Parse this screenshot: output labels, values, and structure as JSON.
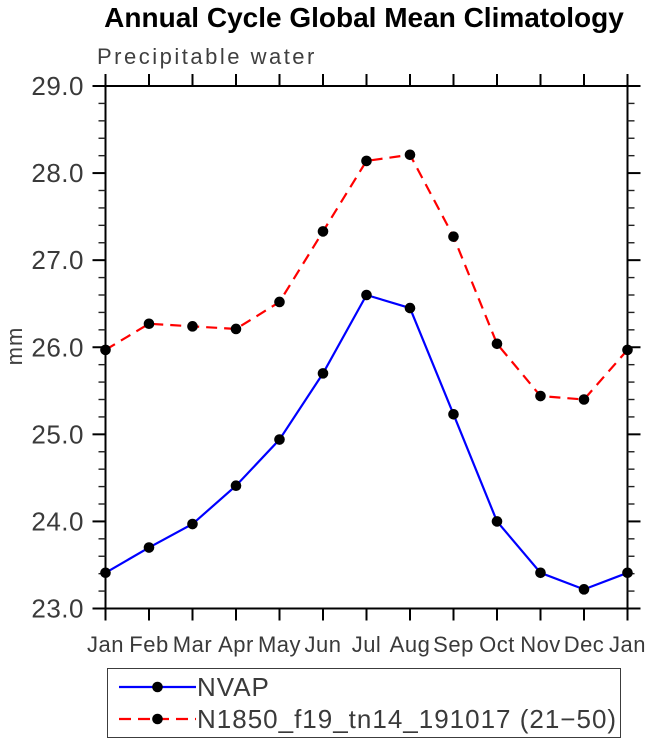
{
  "chart_data": {
    "type": "line",
    "title": "Annual Cycle Global Mean Climatology",
    "subtitle": "Precipitable water",
    "ylabel": "mm",
    "xlabel": "",
    "categories": [
      "Jan",
      "Feb",
      "Mar",
      "Apr",
      "May",
      "Jun",
      "Jul",
      "Aug",
      "Sep",
      "Oct",
      "Nov",
      "Dec",
      "Jan"
    ],
    "series": [
      {
        "name": "NVAP",
        "color": "#0000ff",
        "line_style": "solid",
        "marker": "filled-circle",
        "marker_color": "#000000",
        "values": [
          23.41,
          23.7,
          23.97,
          24.41,
          24.94,
          25.7,
          26.6,
          26.45,
          25.23,
          24.0,
          23.41,
          23.22,
          23.41
        ]
      },
      {
        "name": "N1850_f19_tn14_191017 (21−50)",
        "color": "#ff0000",
        "line_style": "dashed",
        "marker": "filled-circle",
        "marker_color": "#000000",
        "values": [
          25.97,
          26.27,
          26.24,
          26.21,
          26.52,
          27.33,
          28.14,
          28.21,
          27.27,
          26.04,
          25.44,
          25.4,
          25.97
        ]
      }
    ],
    "ylim": [
      23.0,
      29.0
    ],
    "y_tick_labels": [
      "23.0",
      "24.0",
      "25.0",
      "26.0",
      "27.0",
      "28.0",
      "29.0"
    ],
    "y_major_step": 1.0,
    "y_minor_step": 0.2,
    "grid": false,
    "ticks": "outward-all-sides",
    "legend_position": "bottom-left-box",
    "axis_color": "#000000",
    "tick_label_color": "#3a3a3a"
  }
}
